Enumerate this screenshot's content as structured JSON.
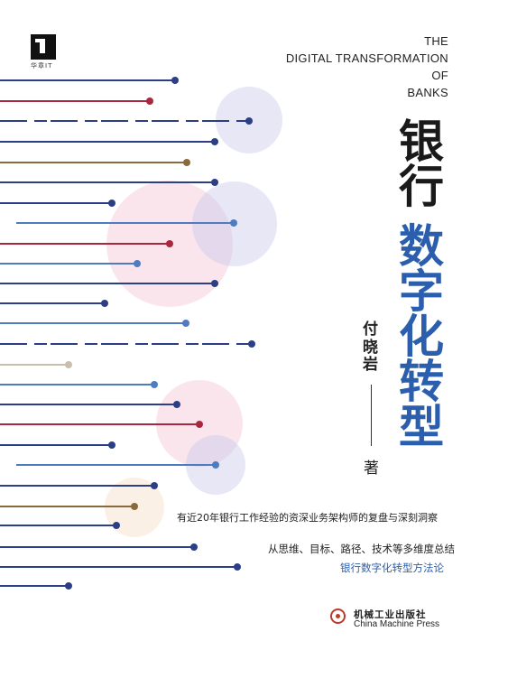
{
  "publisher_brand": {
    "imprint": "华章IT"
  },
  "title": {
    "english": [
      "THE",
      "DIGITAL TRANSFORMATION",
      "OF",
      "BANKS"
    ],
    "line1": "银行",
    "line2": "数字化转型"
  },
  "author": {
    "name": "付晓岩",
    "role": "著"
  },
  "tagline": "有近20年银行工作经验的资深业务架构师的复盘与深刻洞察",
  "summary": "从思维、目标、路径、技术等多维度总结",
  "method": "银行数字化转型方法论",
  "publisher": {
    "chinese": "机械工业出版社",
    "english": "China Machine Press"
  },
  "colors": {
    "accent_blue": "#2b5fad",
    "navy": "#2c3e85",
    "crimson": "#a8283f",
    "brown": "#8a6a3c",
    "beige": "#c9bfae",
    "light_blue": "#4f7cc0"
  },
  "decor": {
    "lines": [
      {
        "color": "navy",
        "dash": false
      },
      {
        "color": "crimson",
        "dash": false
      },
      {
        "color": "navy",
        "dash": true
      },
      {
        "color": "navy",
        "dash": false
      },
      {
        "color": "brown",
        "dash": false
      },
      {
        "color": "navy",
        "dash": false
      },
      {
        "color": "navy",
        "dash": false
      },
      {
        "color": "light_blue",
        "dash": false
      },
      {
        "color": "crimson",
        "dash": false
      },
      {
        "color": "light_blue",
        "dash": false
      },
      {
        "color": "navy",
        "dash": false
      },
      {
        "color": "navy",
        "dash": false
      },
      {
        "color": "light_blue",
        "dash": false
      },
      {
        "color": "navy",
        "dash": true
      },
      {
        "color": "beige",
        "dash": false
      },
      {
        "color": "light_blue",
        "dash": false
      },
      {
        "color": "navy",
        "dash": false
      },
      {
        "color": "crimson",
        "dash": false
      },
      {
        "color": "navy",
        "dash": false
      },
      {
        "color": "light_blue",
        "dash": false
      },
      {
        "color": "navy",
        "dash": false
      },
      {
        "color": "brown",
        "dash": false
      },
      {
        "color": "navy",
        "dash": false
      },
      {
        "color": "navy",
        "dash": false
      },
      {
        "color": "navy",
        "dash": false
      },
      {
        "color": "navy",
        "dash": false
      }
    ],
    "circles": [
      {
        "color": "#c9c9ec"
      },
      {
        "color": "#f3c6d6"
      },
      {
        "color": "#c9c9ec"
      },
      {
        "color": "#f3c6d6"
      },
      {
        "color": "#c9c9ec"
      },
      {
        "color": "#f3ddc6"
      }
    ]
  }
}
